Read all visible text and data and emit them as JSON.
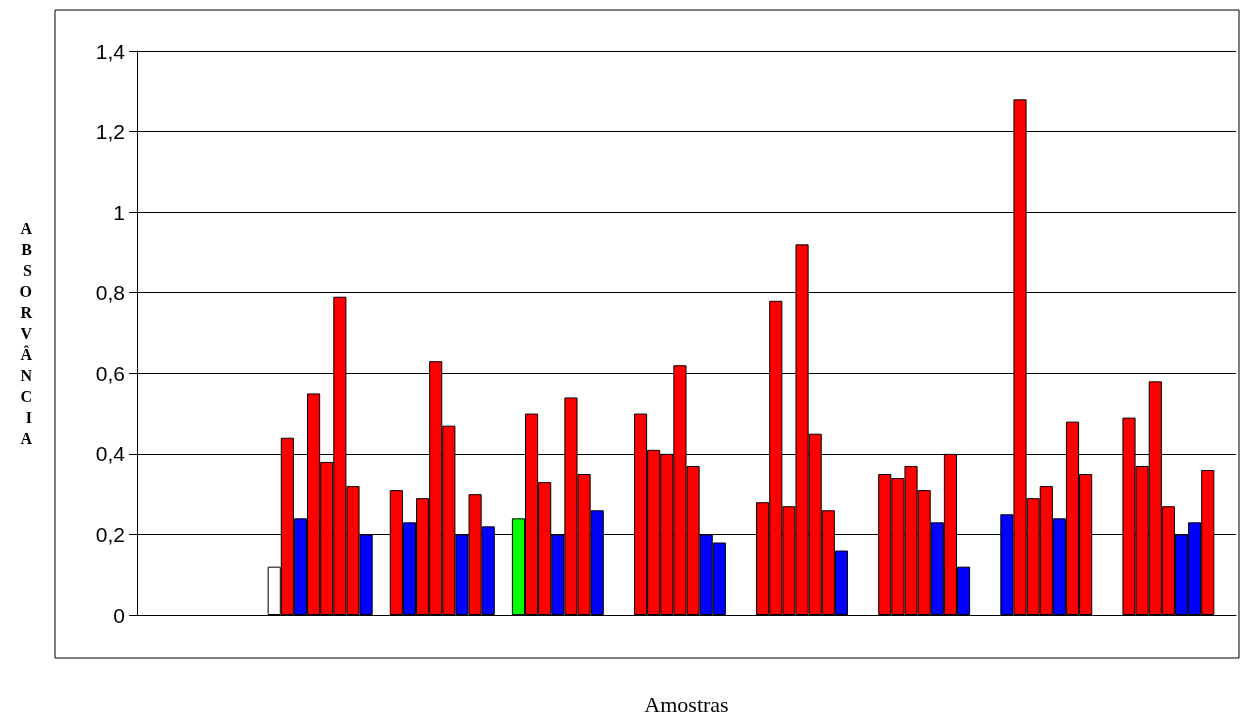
{
  "chart_data": {
    "type": "bar",
    "xlabel": "Amostras",
    "ylabel": "ABSORVÂNCIA",
    "categories": [
      null,
      null,
      null,
      null,
      null,
      null,
      null,
      null,
      null
    ],
    "series": [
      {
        "values": [
          null,
          0.12,
          0.31,
          0.24,
          0.5,
          0.28,
          0.35,
          0.25,
          0.49
        ],
        "colors": [
          null,
          "#ffffff",
          "#ff0000",
          "#00ff00",
          "#ff0000",
          "#ff0000",
          "#ff0000",
          "#0000ff",
          "#ff0000"
        ]
      },
      {
        "values": [
          null,
          0.44,
          0.23,
          0.5,
          0.41,
          0.78,
          0.34,
          1.28,
          0.37
        ],
        "colors": [
          null,
          "#ff0000",
          "#0000ff",
          "#ff0000",
          "#ff0000",
          "#ff0000",
          "#ff0000",
          "#ff0000",
          "#ff0000"
        ]
      },
      {
        "values": [
          null,
          0.24,
          0.29,
          0.33,
          0.4,
          0.27,
          0.37,
          0.29,
          0.58
        ],
        "colors": [
          null,
          "#0000ff",
          "#ff0000",
          "#ff0000",
          "#ff0000",
          "#ff0000",
          "#ff0000",
          "#ff0000",
          "#ff0000"
        ]
      },
      {
        "values": [
          null,
          0.55,
          0.63,
          0.2,
          0.62,
          0.92,
          0.31,
          0.32,
          0.27
        ],
        "colors": [
          null,
          "#ff0000",
          "#ff0000",
          "#0000ff",
          "#ff0000",
          "#ff0000",
          "#ff0000",
          "#ff0000",
          "#ff0000"
        ]
      },
      {
        "values": [
          null,
          0.38,
          0.47,
          0.54,
          0.37,
          0.45,
          0.23,
          0.24,
          0.2
        ],
        "colors": [
          null,
          "#ff0000",
          "#ff0000",
          "#ff0000",
          "#ff0000",
          "#ff0000",
          "#0000ff",
          "#0000ff",
          "#0000ff"
        ]
      },
      {
        "values": [
          null,
          0.79,
          0.2,
          0.35,
          0.2,
          0.26,
          0.4,
          0.48,
          0.23
        ],
        "colors": [
          null,
          "#ff0000",
          "#0000ff",
          "#ff0000",
          "#0000ff",
          "#ff0000",
          "#ff0000",
          "#ff0000",
          "#0000ff"
        ]
      },
      {
        "values": [
          null,
          0.32,
          0.3,
          0.26,
          0.18,
          0.16,
          0.12,
          0.35,
          0.36
        ],
        "colors": [
          null,
          "#ff0000",
          "#ff0000",
          "#0000ff",
          "#0000ff",
          "#0000ff",
          "#0000ff",
          "#ff0000",
          "#ff0000"
        ]
      },
      {
        "values": [
          null,
          0.2,
          0.22,
          null,
          null,
          null,
          null,
          null,
          null
        ],
        "colors": [
          null,
          "#0000ff",
          "#0000ff",
          null,
          null,
          null,
          null,
          null,
          null
        ]
      }
    ],
    "ylim": [
      0,
      1.4
    ],
    "yticks": [
      0,
      {
        "value": 0.2,
        "label": "0,2"
      },
      {
        "value": 0.4,
        "label": "0,4"
      },
      {
        "value": 0.6,
        "label": "0,6"
      },
      {
        "value": 0.8,
        "label": "0,8"
      },
      1,
      {
        "value": 1.2,
        "label": "1,2"
      },
      {
        "value": 1.4,
        "label": "1,4"
      }
    ],
    "grid": "y"
  }
}
